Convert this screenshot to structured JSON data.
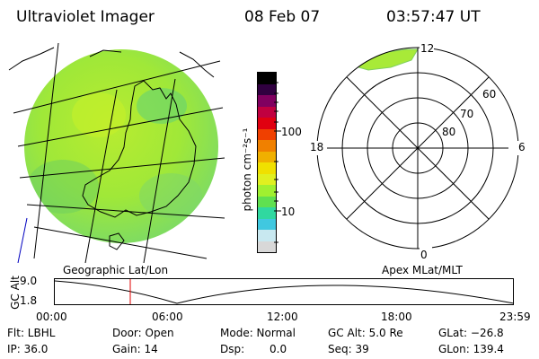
{
  "header": {
    "instrument": "Ultraviolet Imager",
    "date": "08 Feb 07",
    "time": "03:57:47 UT"
  },
  "colorbar": {
    "unit_label": "photon cm⁻²s⁻¹",
    "tick_100": "100",
    "tick_10": "10",
    "colors": [
      "#d8d8d8",
      "#c8e8f0",
      "#40c8e0",
      "#30d8a0",
      "#60e050",
      "#a0f030",
      "#e0f020",
      "#f0e000",
      "#f0b000",
      "#f08000",
      "#f04000",
      "#e00010",
      "#c00040",
      "#800060",
      "#300040",
      "#000000"
    ]
  },
  "polar_plot": {
    "mlt_labels": {
      "top": "12",
      "left": "18",
      "right": "6",
      "bottom": "0"
    },
    "lat_labels": [
      "60",
      "70",
      "80"
    ]
  },
  "labels": {
    "left_panel": "Geographic Lat/Lon",
    "right_panel": "Apex MLat/MLT"
  },
  "altitude_plot": {
    "ylabel": "GC Alt",
    "yticks": [
      "9.0",
      "1.8"
    ],
    "xticks": [
      "00:00",
      "06:00",
      "12:00",
      "18:00",
      "23:59"
    ],
    "current_time_marker": "03:57"
  },
  "status": {
    "flt": "Flt: LBHL",
    "ip": "IP: 36.0",
    "door": "Door: Open",
    "gain": "Gain: 14",
    "mode": "Mode: Normal",
    "dsp_label": "Dsp:",
    "dsp_value": "0.0",
    "gc_alt": "GC Alt: 5.0 Re",
    "seq": "Seq: 39",
    "glat": "GLat: −26.8",
    "glon": "GLon: 139.4"
  }
}
